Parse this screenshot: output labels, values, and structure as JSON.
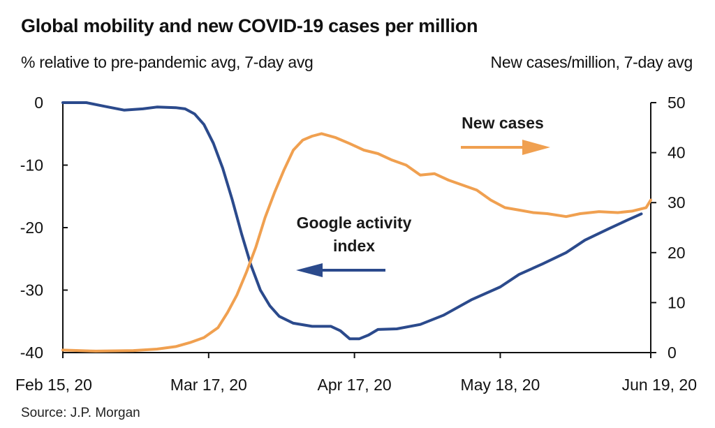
{
  "chart_data": {
    "type": "line",
    "title": "Global mobility and new COVID-19 cases per million",
    "ylabel_left": "% relative to pre-pandemic avg, 7-day avg",
    "ylabel_right": "New cases/million, 7-day avg",
    "source": "Source: J.P. Morgan",
    "x_ticks": [
      "Feb 15, 20",
      "Mar 17, 20",
      "Apr 17, 20",
      "May 18, 20",
      "Jun 19, 20"
    ],
    "x_tick_dates": [
      "2020-02-15",
      "2020-03-17",
      "2020-04-17",
      "2020-05-18",
      "2020-06-19"
    ],
    "xlim": [
      "2020-02-15",
      "2020-06-19"
    ],
    "y_left": {
      "ticks": [
        0,
        -10,
        -20,
        -30,
        -40
      ],
      "ylim": [
        -40,
        0
      ]
    },
    "y_right": {
      "ticks": [
        50,
        40,
        30,
        20,
        10,
        0
      ],
      "ylim": [
        0,
        50
      ]
    },
    "grid": false,
    "series": [
      {
        "name": "Google activity index",
        "axis": "left",
        "color": "#2b4a8c",
        "points": [
          [
            "2020-02-15",
            0
          ],
          [
            "2020-02-20",
            0
          ],
          [
            "2020-02-24",
            -0.6
          ],
          [
            "2020-02-28",
            -1.2
          ],
          [
            "2020-03-03",
            -1.0
          ],
          [
            "2020-03-06",
            -0.7
          ],
          [
            "2020-03-10",
            -0.8
          ],
          [
            "2020-03-12",
            -1.0
          ],
          [
            "2020-03-14",
            -1.8
          ],
          [
            "2020-03-16",
            -3.5
          ],
          [
            "2020-03-18",
            -6.5
          ],
          [
            "2020-03-20",
            -10.5
          ],
          [
            "2020-03-22",
            -15.5
          ],
          [
            "2020-03-24",
            -21
          ],
          [
            "2020-03-26",
            -26
          ],
          [
            "2020-03-28",
            -30
          ],
          [
            "2020-03-30",
            -32.5
          ],
          [
            "2020-04-01",
            -34.2
          ],
          [
            "2020-04-04",
            -35.3
          ],
          [
            "2020-04-08",
            -35.8
          ],
          [
            "2020-04-12",
            -35.8
          ],
          [
            "2020-04-14",
            -36.5
          ],
          [
            "2020-04-16",
            -37.8
          ],
          [
            "2020-04-18",
            -37.8
          ],
          [
            "2020-04-20",
            -37.2
          ],
          [
            "2020-04-22",
            -36.3
          ],
          [
            "2020-04-26",
            -36.2
          ],
          [
            "2020-05-01",
            -35.5
          ],
          [
            "2020-05-06",
            -34.0
          ],
          [
            "2020-05-12",
            -31.5
          ],
          [
            "2020-05-18",
            -29.5
          ],
          [
            "2020-05-22",
            -27.5
          ],
          [
            "2020-05-27",
            -25.8
          ],
          [
            "2020-06-01",
            -24.0
          ],
          [
            "2020-06-05",
            -22.0
          ],
          [
            "2020-06-10",
            -20.2
          ],
          [
            "2020-06-14",
            -18.8
          ],
          [
            "2020-06-17",
            -17.8
          ]
        ]
      },
      {
        "name": "New cases",
        "axis": "right",
        "color": "#f0a050",
        "points": [
          [
            "2020-02-15",
            0.5
          ],
          [
            "2020-02-22",
            0.3
          ],
          [
            "2020-03-01",
            0.4
          ],
          [
            "2020-03-06",
            0.7
          ],
          [
            "2020-03-10",
            1.2
          ],
          [
            "2020-03-13",
            2.0
          ],
          [
            "2020-03-16",
            3.0
          ],
          [
            "2020-03-19",
            5.0
          ],
          [
            "2020-03-21",
            8.0
          ],
          [
            "2020-03-23",
            11.5
          ],
          [
            "2020-03-25",
            16.0
          ],
          [
            "2020-03-27",
            21.0
          ],
          [
            "2020-03-29",
            27.0
          ],
          [
            "2020-03-31",
            32.0
          ],
          [
            "2020-04-02",
            36.5
          ],
          [
            "2020-04-04",
            40.5
          ],
          [
            "2020-04-06",
            42.5
          ],
          [
            "2020-04-08",
            43.3
          ],
          [
            "2020-04-10",
            43.8
          ],
          [
            "2020-04-13",
            43.0
          ],
          [
            "2020-04-16",
            41.8
          ],
          [
            "2020-04-19",
            40.5
          ],
          [
            "2020-04-22",
            39.8
          ],
          [
            "2020-04-25",
            38.5
          ],
          [
            "2020-04-28",
            37.5
          ],
          [
            "2020-05-01",
            35.5
          ],
          [
            "2020-05-04",
            35.8
          ],
          [
            "2020-05-07",
            34.5
          ],
          [
            "2020-05-10",
            33.5
          ],
          [
            "2020-05-13",
            32.5
          ],
          [
            "2020-05-16",
            30.5
          ],
          [
            "2020-05-19",
            29.0
          ],
          [
            "2020-05-22",
            28.5
          ],
          [
            "2020-05-25",
            28.0
          ],
          [
            "2020-05-28",
            27.8
          ],
          [
            "2020-06-01",
            27.2
          ],
          [
            "2020-06-04",
            27.8
          ],
          [
            "2020-06-08",
            28.2
          ],
          [
            "2020-06-12",
            28.0
          ],
          [
            "2020-06-15",
            28.3
          ],
          [
            "2020-06-18",
            29.0
          ],
          [
            "2020-06-19",
            30.5
          ]
        ]
      }
    ],
    "annotations": [
      {
        "text_lines": [
          "New cases"
        ],
        "arrow": "right",
        "series": "New cases"
      },
      {
        "text_lines": [
          "Google activity",
          "index"
        ],
        "arrow": "left",
        "series": "Google activity index"
      }
    ]
  }
}
